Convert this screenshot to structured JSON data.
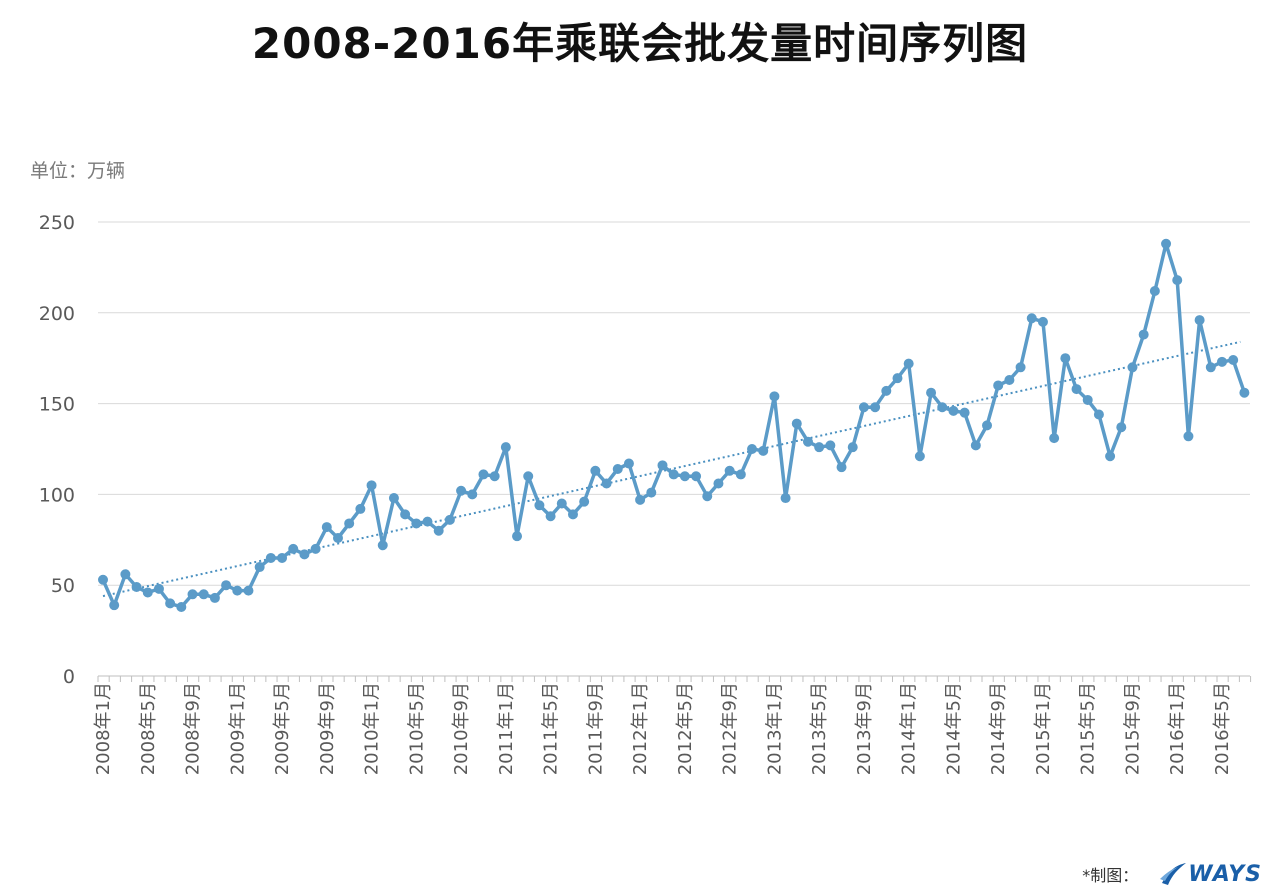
{
  "title": "2008-2016年乘联会批发量时间序列图",
  "unit_label": "单位：万辆",
  "footer": {
    "credit": "*制图：",
    "logo_text": "WAYS"
  },
  "colors": {
    "line": "#5b9bc8",
    "trend": "#4a90c0",
    "grid": "#d9d9d9",
    "axis": "#bfbfbf",
    "tick_text": "#595959"
  },
  "chart_data": {
    "type": "line",
    "title": "2008-2016年乘联会批发量时间序列图",
    "ylabel": "单位：万辆",
    "ylim": [
      0,
      250
    ],
    "yticks": [
      0,
      50,
      100,
      150,
      200,
      250
    ],
    "grid": true,
    "x_tick_labels": [
      "2008年1月",
      "2008年5月",
      "2008年9月",
      "2009年1月",
      "2009年5月",
      "2009年9月",
      "2010年1月",
      "2010年5月",
      "2010年9月",
      "2011年1月",
      "2011年5月",
      "2011年9月",
      "2012年1月",
      "2012年5月",
      "2012年9月",
      "2013年1月",
      "2013年5月",
      "2013年9月",
      "2014年1月",
      "2014年5月",
      "2014年9月",
      "2015年1月",
      "2015年5月",
      "2015年9月",
      "2016年1月",
      "2016年5月"
    ],
    "series": [
      {
        "start": "2008年1月",
        "frequency": "monthly",
        "values": [
          53,
          39,
          56,
          49,
          46,
          48,
          40,
          38,
          45,
          45,
          43,
          50,
          47,
          47,
          60,
          65,
          65,
          70,
          67,
          70,
          82,
          76,
          84,
          92,
          105,
          72,
          98,
          89,
          84,
          85,
          80,
          86,
          102,
          100,
          111,
          110,
          126,
          77,
          110,
          94,
          88,
          95,
          89,
          96,
          113,
          106,
          114,
          117,
          97,
          101,
          116,
          111,
          110,
          110,
          99,
          106,
          113,
          111,
          125,
          124,
          154,
          98,
          139,
          129,
          126,
          127,
          115,
          126,
          148,
          148,
          157,
          164,
          172,
          121,
          156,
          148,
          146,
          145,
          127,
          138,
          160,
          163,
          170,
          197,
          195,
          131,
          175,
          158,
          152,
          144,
          121,
          137,
          170,
          188,
          212,
          238,
          218,
          132,
          196,
          170,
          173,
          174,
          156
        ]
      }
    ],
    "trendline": {
      "style": "dotted",
      "type": "linear",
      "start_value": 44,
      "end_value": 184
    }
  }
}
